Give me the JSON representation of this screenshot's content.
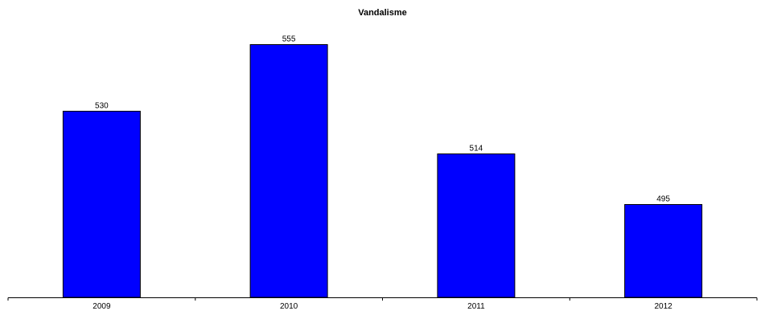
{
  "chart_data": {
    "type": "bar",
    "title": "Vandalisme",
    "categories": [
      "2009",
      "2010",
      "2011",
      "2012"
    ],
    "values": [
      530,
      555,
      514,
      495
    ],
    "data_labels": [
      "530",
      "555",
      "514",
      "495"
    ],
    "ylim": [
      450,
      560
    ],
    "grid": false,
    "legend": "none",
    "colors": {
      "bar_fill": "#0000FF",
      "bar_stroke": "#000000",
      "axis": "#000000"
    }
  }
}
